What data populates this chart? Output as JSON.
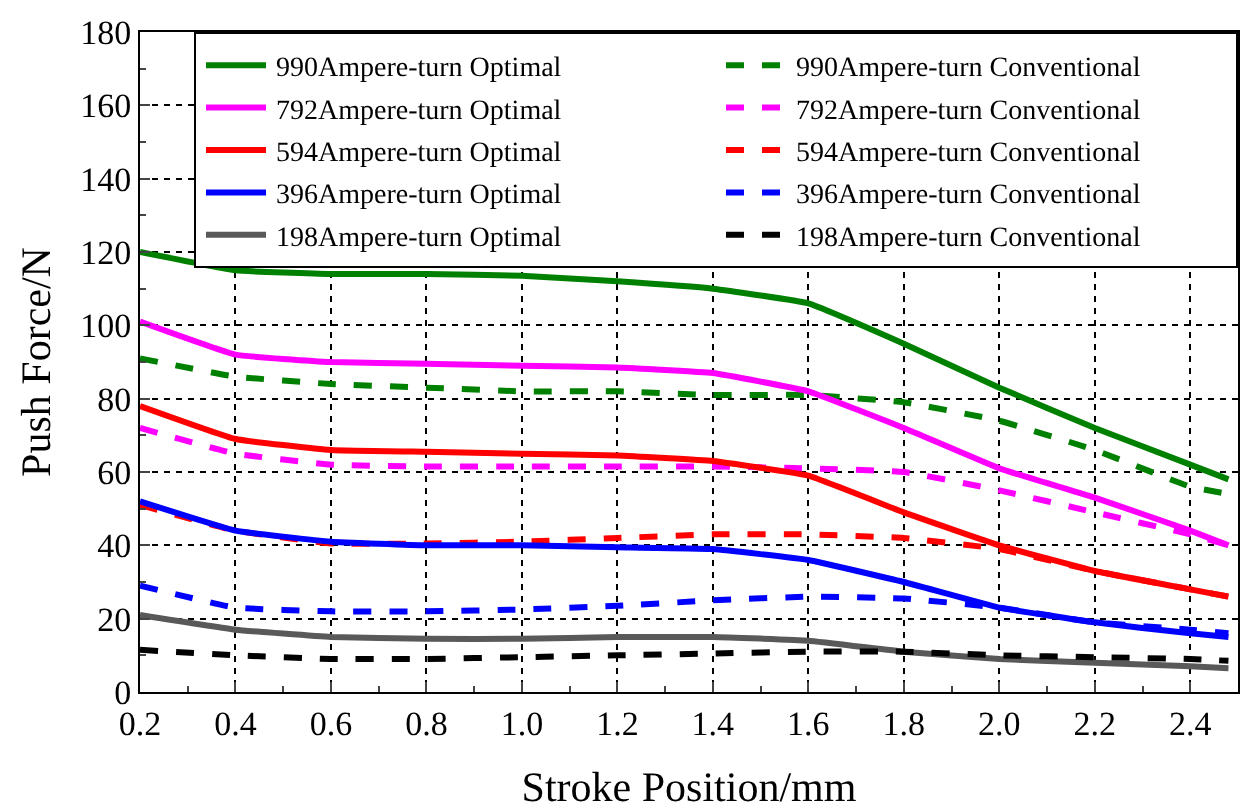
{
  "chart_data": {
    "type": "line",
    "xlabel": "Stroke Position/mm",
    "ylabel": "Push Force/N",
    "x": [
      0.2,
      0.4,
      0.6,
      0.8,
      1.0,
      1.2,
      1.4,
      1.6,
      1.8,
      2.0,
      2.2,
      2.4,
      2.48
    ],
    "series": [
      {
        "name": "990Ampere-turn Optimal",
        "color": "#008000",
        "line_style": "solid",
        "values": [
          120,
          115,
          114,
          114,
          113.5,
          112,
          110,
          106,
          95,
          83,
          72,
          62,
          58
        ]
      },
      {
        "name": "990Ampere-turn Conventional",
        "color": "#008000",
        "line_style": "dashed",
        "values": [
          91,
          86,
          84,
          83,
          82,
          82,
          81,
          81,
          79,
          74,
          66,
          56,
          54
        ]
      },
      {
        "name": "792Ampere-turn Optimal",
        "color": "#ff00ff",
        "line_style": "solid",
        "values": [
          101,
          92,
          90,
          89.5,
          89,
          88.5,
          87,
          82,
          72,
          61,
          53,
          44,
          40
        ]
      },
      {
        "name": "792Ampere-turn Conventional",
        "color": "#ff00ff",
        "line_style": "dashed",
        "values": [
          72,
          65,
          62,
          61.5,
          61.5,
          61.5,
          61.5,
          61,
          60,
          55,
          49,
          43,
          40
        ]
      },
      {
        "name": "594Ampere-turn Optimal",
        "color": "#ff0000",
        "line_style": "solid",
        "values": [
          78,
          69,
          66,
          65.5,
          65,
          64.5,
          63,
          59,
          49,
          40,
          33,
          28,
          26
        ]
      },
      {
        "name": "594Ampere-turn Conventional",
        "color": "#ff0000",
        "line_style": "dashed",
        "values": [
          51,
          44,
          40.5,
          40.5,
          41,
          42,
          43,
          43,
          42,
          39,
          33,
          28,
          26
        ]
      },
      {
        "name": "396Ampere-turn Optimal",
        "color": "#0000ff",
        "line_style": "solid",
        "values": [
          52,
          44,
          41,
          40,
          40,
          39.5,
          39,
          36,
          30,
          23,
          19,
          16,
          15
        ]
      },
      {
        "name": "396Ampere-turn Conventional",
        "color": "#0000ff",
        "line_style": "dashed",
        "values": [
          29,
          23,
          22,
          22,
          22.5,
          23.5,
          25,
          26,
          25.5,
          23,
          19,
          17,
          16
        ]
      },
      {
        "name": "198Ampere-turn Optimal",
        "color": "#595959",
        "line_style": "solid",
        "values": [
          21,
          17,
          15,
          14.5,
          14.5,
          15,
          15,
          14,
          11,
          9,
          8,
          7,
          6.5
        ]
      },
      {
        "name": "198Ampere-turn Conventional",
        "color": "#000000",
        "line_style": "dashed",
        "values": [
          11.5,
          10,
          9,
          9,
          9.5,
          10,
          10.5,
          11,
          11,
          10,
          9.5,
          9,
          8.5
        ]
      }
    ],
    "xlim": [
      0.2,
      2.5
    ],
    "xticks": [
      0.2,
      0.4,
      0.6,
      0.8,
      {
        "value": 1,
        "label": "1.0"
      },
      1.2,
      1.4,
      1.6,
      1.8,
      {
        "value": 2,
        "label": "2.0"
      },
      2.2,
      2.4
    ],
    "ylim": [
      0,
      180
    ],
    "yticks": [
      0,
      20,
      40,
      60,
      80,
      100,
      120,
      140,
      160,
      180
    ],
    "grid": true,
    "legend": "top right",
    "marker": "none"
  }
}
